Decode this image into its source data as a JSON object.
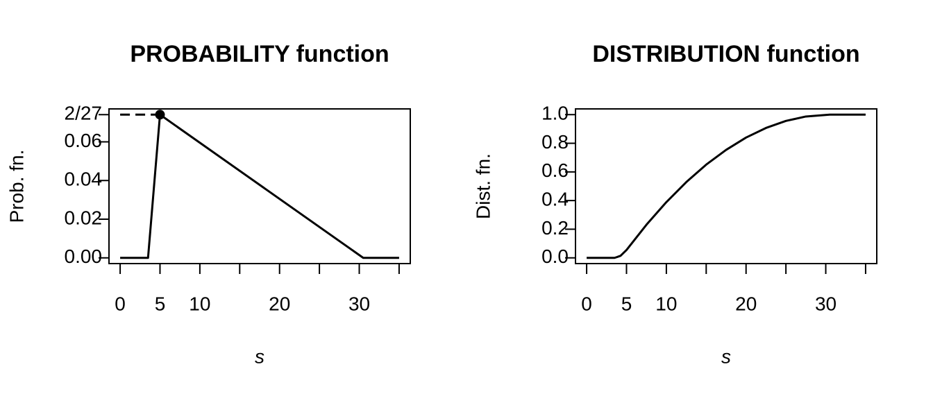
{
  "chart_data": [
    {
      "type": "line",
      "title": "PROBABILITY function",
      "x_label": "s",
      "y_label": "Prob. fn.",
      "xlim": [
        -1.4,
        36.4
      ],
      "ylim": [
        -0.00296,
        0.07704
      ],
      "xticks": [
        0,
        5,
        10,
        {
          "value": 15,
          "label": null
        },
        20,
        {
          "value": 25,
          "label": null
        },
        30,
        {
          "value": 35,
          "label": null
        }
      ],
      "yticks": [
        {
          "value": 0,
          "label": "0.00"
        },
        0.02,
        0.04,
        0.06,
        {
          "value": 0.07407,
          "label": "2/27"
        }
      ],
      "series": [
        {
          "color": "#000000",
          "x": [
            0,
            3.5,
            5,
            30.5,
            35
          ],
          "values": [
            0,
            0,
            0.07407,
            0,
            0
          ]
        },
        {
          "color": "#000000",
          "dash": true,
          "x": [
            0,
            5
          ],
          "values": [
            0.07407,
            0.07407
          ]
        },
        {
          "color": "#000000",
          "marker": true,
          "x": [
            5
          ],
          "values": [
            0.07407
          ]
        }
      ]
    },
    {
      "type": "line",
      "title": "DISTRIBUTION function",
      "x_label": "s",
      "y_label": "Dist. fn.",
      "xlim": [
        -1.4,
        36.4
      ],
      "ylim": [
        -0.04,
        1.04
      ],
      "xticks": [
        0,
        5,
        10,
        {
          "value": 15,
          "label": null
        },
        20,
        {
          "value": 25,
          "label": null
        },
        30,
        {
          "value": 35,
          "label": null
        }
      ],
      "yticks": [
        {
          "value": 0,
          "label": "0.0"
        },
        0.2,
        0.4,
        0.6,
        0.8,
        {
          "value": 1,
          "label": "1.0"
        }
      ],
      "series": [
        {
          "color": "#000000",
          "x": [
            0,
            3.5,
            4.25,
            5,
            7.5,
            10,
            12.5,
            15,
            17.5,
            20,
            22.5,
            25,
            27.5,
            30.5,
            35
          ],
          "values": [
            0,
            0,
            0.014,
            0.055,
            0.231,
            0.389,
            0.529,
            0.651,
            0.754,
            0.84,
            0.907,
            0.956,
            0.987,
            1,
            1
          ]
        }
      ]
    }
  ]
}
